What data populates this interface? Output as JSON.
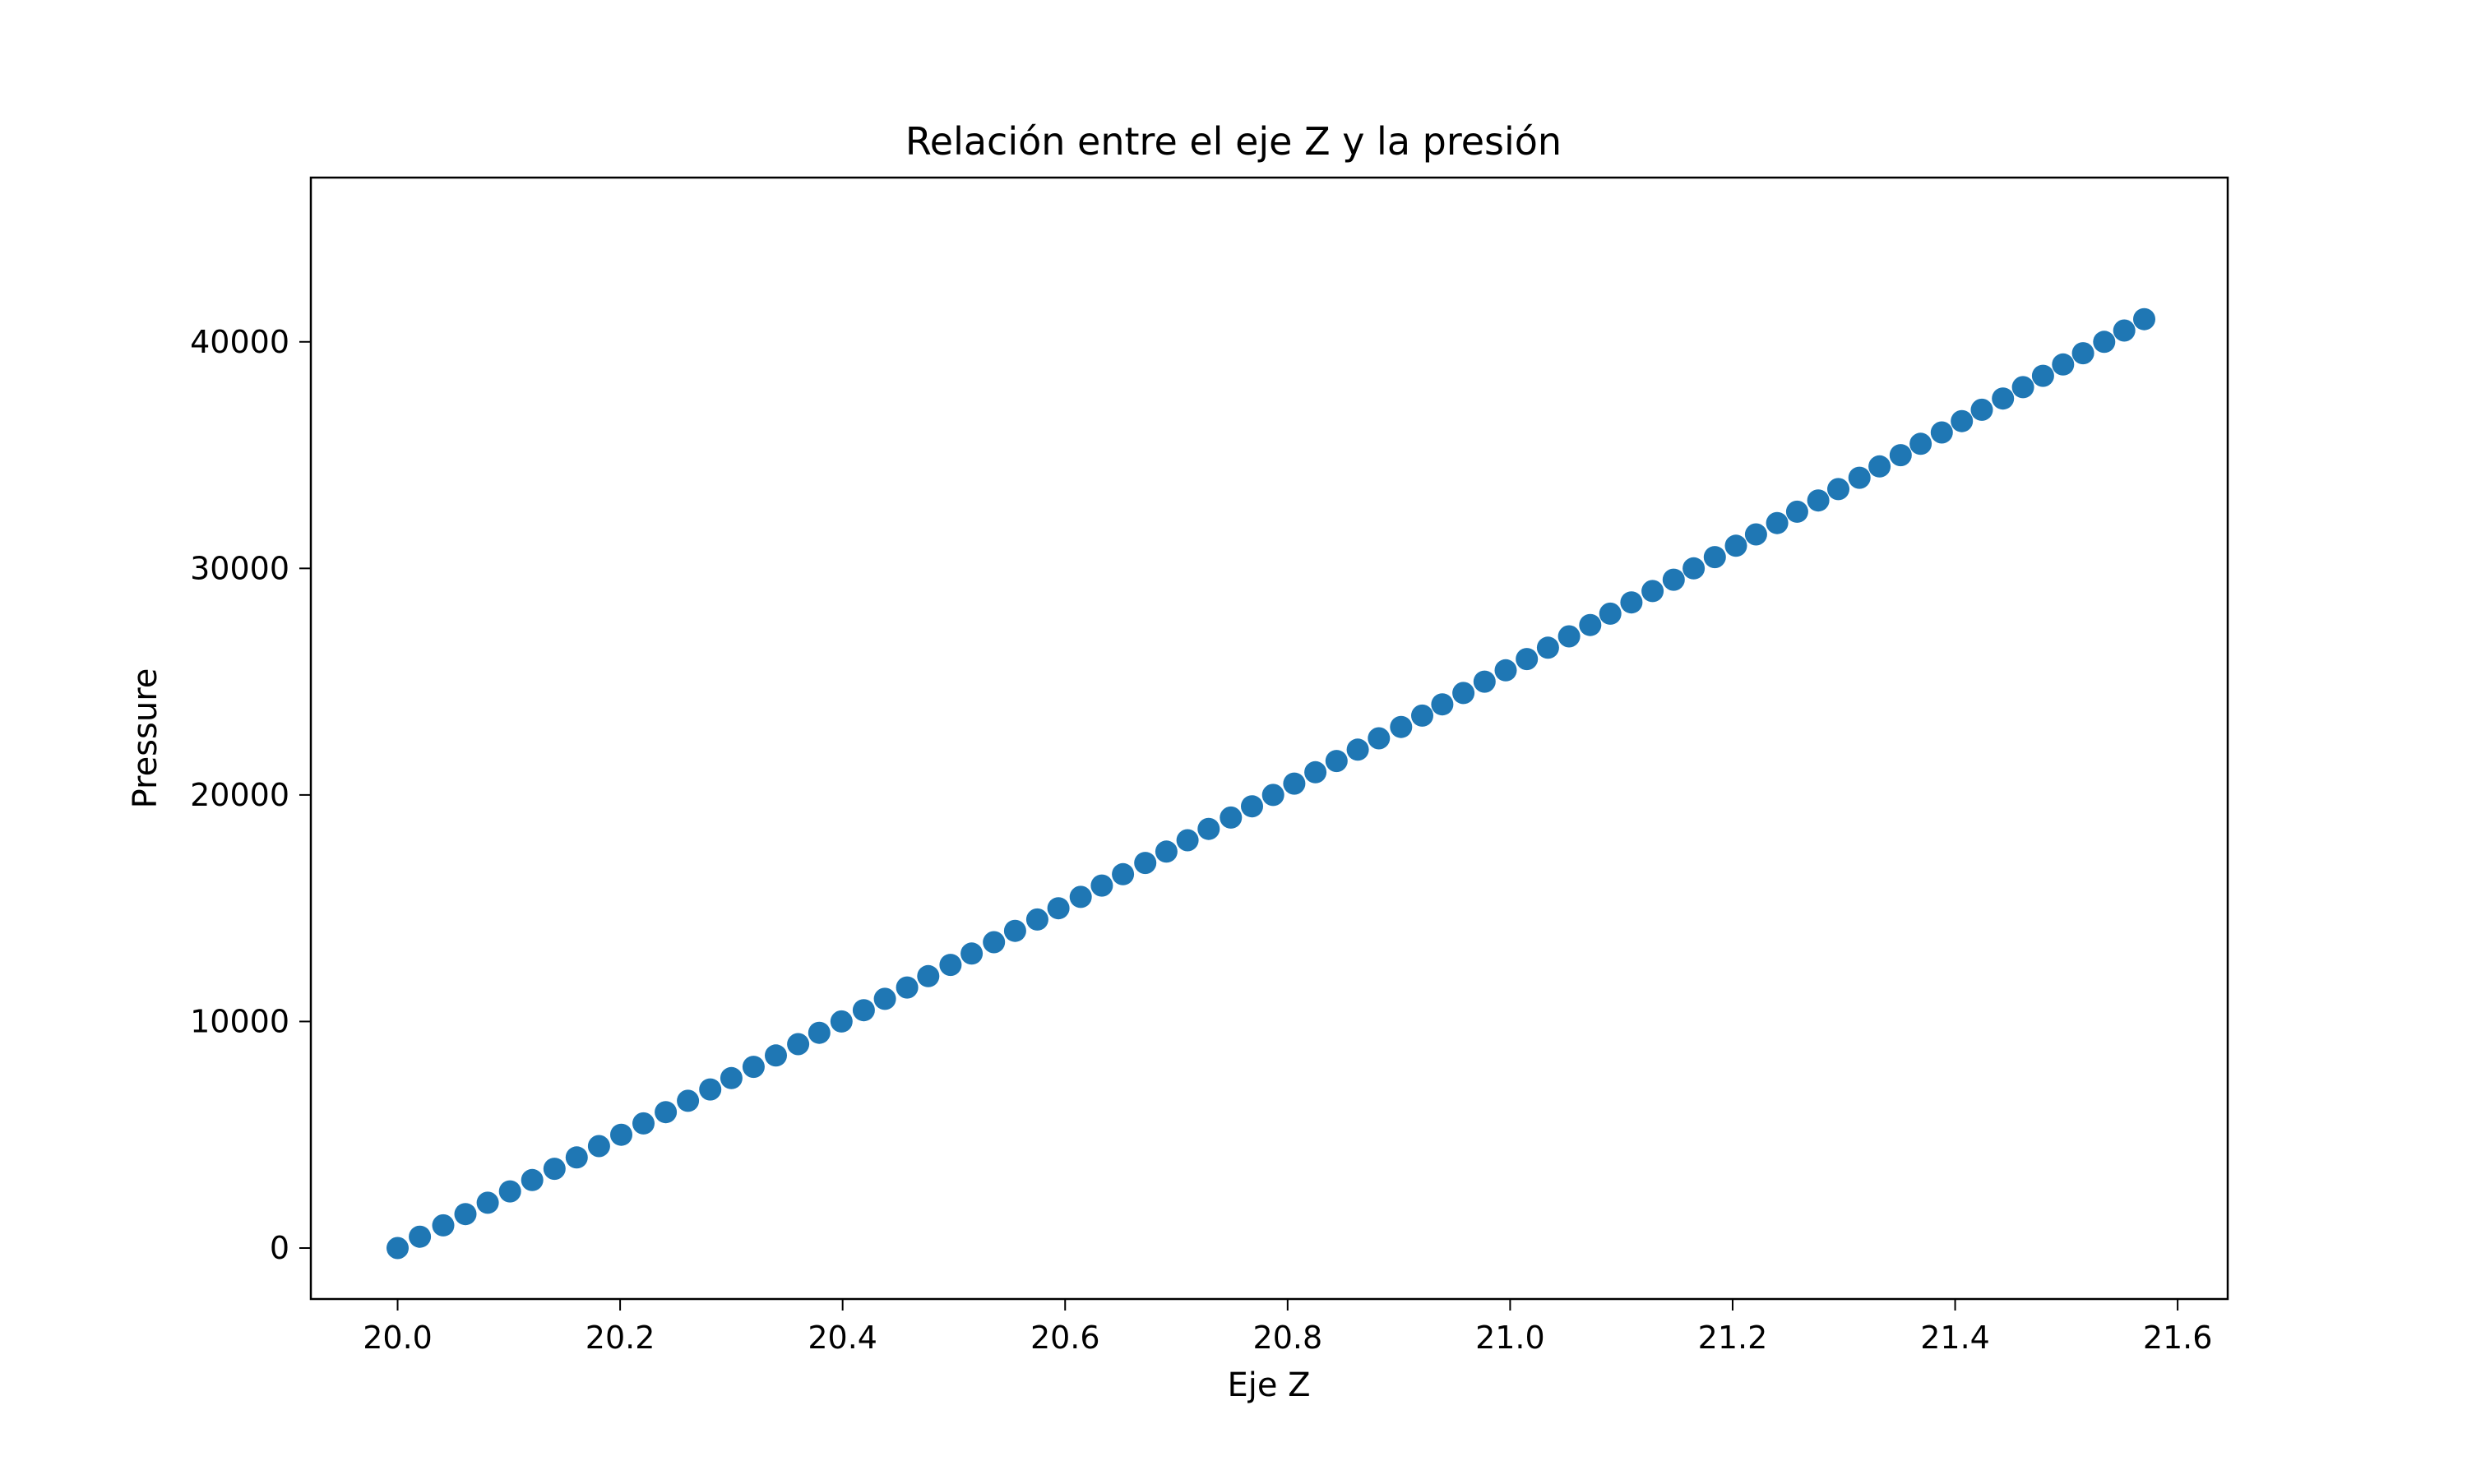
{
  "chart_data": {
    "type": "scatter",
    "title": "Relación entre el eje Z y la presión",
    "xlabel": "Eje Z",
    "ylabel": "Pressure",
    "xlim": [
      19.922,
      21.645
    ],
    "ylim": [
      -2250,
      47250
    ],
    "xticks": [
      20.0,
      20.2,
      20.4,
      20.6,
      20.8,
      21.0,
      21.2,
      21.4,
      21.6
    ],
    "xtick_labels": [
      "20.0",
      "20.2",
      "20.4",
      "20.6",
      "20.8",
      "21.0",
      "21.2",
      "21.4",
      "21.6"
    ],
    "yticks": [
      0,
      10000,
      20000,
      30000,
      40000
    ],
    "ytick_labels": [
      "0",
      "10000",
      "20000",
      "30000",
      "40000"
    ],
    "grid": false,
    "marker_color": "#1f77b4",
    "series": [
      {
        "x": [
          20.0,
          20.02,
          20.041,
          20.061,
          20.081,
          20.101,
          20.121,
          20.141,
          20.161,
          20.181,
          20.201,
          20.221,
          20.241,
          20.261,
          20.281,
          20.3,
          20.32,
          20.34,
          20.36,
          20.379,
          20.399,
          20.419,
          20.438,
          20.458,
          20.477,
          20.497,
          20.516,
          20.536,
          20.555,
          20.575,
          20.594,
          20.614,
          20.633,
          20.652,
          20.672,
          20.691,
          20.71,
          20.729,
          20.749,
          20.768,
          20.787,
          20.806,
          20.825,
          20.844,
          20.863,
          20.882,
          20.902,
          20.921,
          20.939,
          20.958,
          20.977,
          20.996,
          21.015,
          21.034,
          21.053,
          21.072,
          21.09,
          21.109,
          21.128,
          21.147,
          21.165,
          21.184,
          21.203,
          21.221,
          21.24,
          21.258,
          21.277,
          21.295,
          21.314,
          21.332,
          21.351,
          21.369,
          21.388,
          21.406,
          21.424,
          21.443,
          21.461,
          21.479,
          21.497,
          21.515,
          21.534,
          21.552,
          21.57
        ],
        "y": [
          0,
          500,
          1000,
          1500,
          2000,
          2500,
          3000,
          3500,
          4000,
          4500,
          5000,
          5500,
          6000,
          6500,
          7000,
          7500,
          8000,
          8500,
          9000,
          9500,
          10000,
          10500,
          11000,
          11500,
          12000,
          12500,
          13000,
          13500,
          14000,
          14500,
          15000,
          15500,
          16000,
          16500,
          17000,
          17500,
          18000,
          18500,
          19000,
          19500,
          20000,
          20500,
          21000,
          21500,
          22000,
          22500,
          23000,
          23500,
          24000,
          24500,
          25000,
          25500,
          26000,
          26500,
          27000,
          27500,
          28000,
          28500,
          29000,
          29500,
          30000,
          30500,
          31000,
          31500,
          32000,
          32500,
          33000,
          33500,
          34000,
          34500,
          35000,
          35500,
          36000,
          36500,
          37000,
          37500,
          38000,
          38500,
          39000,
          39500,
          40000,
          40500,
          41000
        ]
      }
    ]
  }
}
